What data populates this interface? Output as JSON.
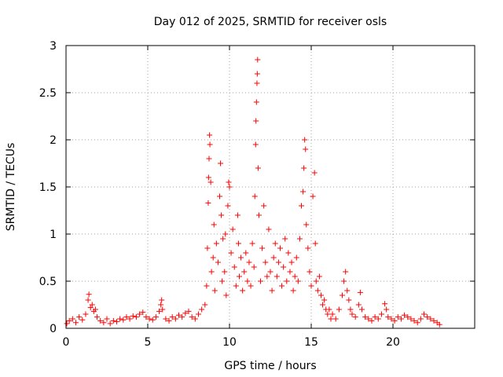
{
  "chart_data": {
    "type": "scatter",
    "title": "Day 012 of 2025, SRMTID for receiver osls",
    "xlabel": "GPS time / hours",
    "ylabel": "SRMTID / TECUs",
    "xlim": [
      0,
      25
    ],
    "ylim": [
      0,
      3
    ],
    "x_ticks": [
      "0",
      "5",
      "10",
      "15",
      "20"
    ],
    "y_ticks": [
      "0",
      "0.5",
      "1",
      "1.5",
      "2",
      "2.5",
      "3"
    ],
    "grid": true,
    "marker": "+",
    "marker_color": "#ff0000",
    "series": [
      {
        "name": "SRMTID",
        "points": [
          [
            0.05,
            0.05
          ],
          [
            0.2,
            0.08
          ],
          [
            0.4,
            0.1
          ],
          [
            0.6,
            0.06
          ],
          [
            0.8,
            0.12
          ],
          [
            1.0,
            0.09
          ],
          [
            1.2,
            0.15
          ],
          [
            1.35,
            0.3
          ],
          [
            1.4,
            0.36
          ],
          [
            1.5,
            0.22
          ],
          [
            1.6,
            0.25
          ],
          [
            1.7,
            0.18
          ],
          [
            1.8,
            0.2
          ],
          [
            1.9,
            0.12
          ],
          [
            2.1,
            0.08
          ],
          [
            2.3,
            0.06
          ],
          [
            2.5,
            0.1
          ],
          [
            2.7,
            0.05
          ],
          [
            2.9,
            0.08
          ],
          [
            3.1,
            0.07
          ],
          [
            3.3,
            0.1
          ],
          [
            3.5,
            0.09
          ],
          [
            3.7,
            0.12
          ],
          [
            3.9,
            0.1
          ],
          [
            4.1,
            0.13
          ],
          [
            4.3,
            0.12
          ],
          [
            4.5,
            0.15
          ],
          [
            4.7,
            0.17
          ],
          [
            4.9,
            0.12
          ],
          [
            5.1,
            0.1
          ],
          [
            5.3,
            0.09
          ],
          [
            5.5,
            0.12
          ],
          [
            5.7,
            0.18
          ],
          [
            5.8,
            0.25
          ],
          [
            5.85,
            0.3
          ],
          [
            5.9,
            0.2
          ],
          [
            6.1,
            0.1
          ],
          [
            6.3,
            0.08
          ],
          [
            6.5,
            0.12
          ],
          [
            6.7,
            0.1
          ],
          [
            6.9,
            0.14
          ],
          [
            7.1,
            0.12
          ],
          [
            7.3,
            0.16
          ],
          [
            7.5,
            0.18
          ],
          [
            7.7,
            0.12
          ],
          [
            7.9,
            0.1
          ],
          [
            8.1,
            0.15
          ],
          [
            8.3,
            0.2
          ],
          [
            8.5,
            0.25
          ],
          [
            8.6,
            0.45
          ],
          [
            8.65,
            0.85
          ],
          [
            8.7,
            1.33
          ],
          [
            8.72,
            1.6
          ],
          [
            8.75,
            1.8
          ],
          [
            8.78,
            2.05
          ],
          [
            8.8,
            1.95
          ],
          [
            8.85,
            1.55
          ],
          [
            8.9,
            0.6
          ],
          [
            9.0,
            0.75
          ],
          [
            9.05,
            1.1
          ],
          [
            9.1,
            0.4
          ],
          [
            9.2,
            0.9
          ],
          [
            9.3,
            0.7
          ],
          [
            9.4,
            1.4
          ],
          [
            9.45,
            1.75
          ],
          [
            9.5,
            1.2
          ],
          [
            9.55,
            0.5
          ],
          [
            9.6,
            0.95
          ],
          [
            9.7,
            0.6
          ],
          [
            9.75,
            1.0
          ],
          [
            9.8,
            0.35
          ],
          [
            9.9,
            1.3
          ],
          [
            9.95,
            1.55
          ],
          [
            10.0,
            1.5
          ],
          [
            10.1,
            0.8
          ],
          [
            10.2,
            1.05
          ],
          [
            10.3,
            0.65
          ],
          [
            10.4,
            0.45
          ],
          [
            10.5,
            1.2
          ],
          [
            10.55,
            0.9
          ],
          [
            10.6,
            0.55
          ],
          [
            10.7,
            0.75
          ],
          [
            10.8,
            0.4
          ],
          [
            10.9,
            0.6
          ],
          [
            11.0,
            0.8
          ],
          [
            11.1,
            0.5
          ],
          [
            11.2,
            0.7
          ],
          [
            11.3,
            0.45
          ],
          [
            11.4,
            0.9
          ],
          [
            11.5,
            0.65
          ],
          [
            11.55,
            1.4
          ],
          [
            11.6,
            1.95
          ],
          [
            11.62,
            2.2
          ],
          [
            11.65,
            2.4
          ],
          [
            11.68,
            2.6
          ],
          [
            11.7,
            2.7
          ],
          [
            11.72,
            2.85
          ],
          [
            11.75,
            1.7
          ],
          [
            11.8,
            1.2
          ],
          [
            11.9,
            0.5
          ],
          [
            12.0,
            0.85
          ],
          [
            12.1,
            1.3
          ],
          [
            12.2,
            0.7
          ],
          [
            12.3,
            0.55
          ],
          [
            12.4,
            1.05
          ],
          [
            12.5,
            0.6
          ],
          [
            12.6,
            0.4
          ],
          [
            12.7,
            0.75
          ],
          [
            12.8,
            0.9
          ],
          [
            12.9,
            0.55
          ],
          [
            13.0,
            0.7
          ],
          [
            13.1,
            0.85
          ],
          [
            13.2,
            0.45
          ],
          [
            13.3,
            0.65
          ],
          [
            13.4,
            0.95
          ],
          [
            13.5,
            0.5
          ],
          [
            13.6,
            0.8
          ],
          [
            13.7,
            0.6
          ],
          [
            13.8,
            0.7
          ],
          [
            13.9,
            0.4
          ],
          [
            14.0,
            0.55
          ],
          [
            14.1,
            0.75
          ],
          [
            14.2,
            0.5
          ],
          [
            14.3,
            0.95
          ],
          [
            14.4,
            1.3
          ],
          [
            14.5,
            1.45
          ],
          [
            14.55,
            1.7
          ],
          [
            14.6,
            2.0
          ],
          [
            14.65,
            1.9
          ],
          [
            14.7,
            1.1
          ],
          [
            14.8,
            0.85
          ],
          [
            14.9,
            0.6
          ],
          [
            15.0,
            0.45
          ],
          [
            15.1,
            1.4
          ],
          [
            15.2,
            1.65
          ],
          [
            15.25,
            0.9
          ],
          [
            15.3,
            0.5
          ],
          [
            15.4,
            0.4
          ],
          [
            15.5,
            0.55
          ],
          [
            15.6,
            0.35
          ],
          [
            15.7,
            0.25
          ],
          [
            15.8,
            0.3
          ],
          [
            15.9,
            0.2
          ],
          [
            16.0,
            0.15
          ],
          [
            16.1,
            0.2
          ],
          [
            16.2,
            0.1
          ],
          [
            16.3,
            0.15
          ],
          [
            16.5,
            0.1
          ],
          [
            16.7,
            0.2
          ],
          [
            16.9,
            0.35
          ],
          [
            17.0,
            0.5
          ],
          [
            17.1,
            0.6
          ],
          [
            17.2,
            0.4
          ],
          [
            17.3,
            0.3
          ],
          [
            17.4,
            0.2
          ],
          [
            17.5,
            0.15
          ],
          [
            17.7,
            0.12
          ],
          [
            17.9,
            0.25
          ],
          [
            18.0,
            0.38
          ],
          [
            18.1,
            0.2
          ],
          [
            18.3,
            0.12
          ],
          [
            18.5,
            0.1
          ],
          [
            18.7,
            0.08
          ],
          [
            18.9,
            0.12
          ],
          [
            19.1,
            0.1
          ],
          [
            19.3,
            0.15
          ],
          [
            19.5,
            0.26
          ],
          [
            19.6,
            0.2
          ],
          [
            19.7,
            0.12
          ],
          [
            19.9,
            0.1
          ],
          [
            20.1,
            0.08
          ],
          [
            20.3,
            0.12
          ],
          [
            20.5,
            0.1
          ],
          [
            20.7,
            0.14
          ],
          [
            20.9,
            0.12
          ],
          [
            21.1,
            0.1
          ],
          [
            21.3,
            0.08
          ],
          [
            21.5,
            0.06
          ],
          [
            21.7,
            0.1
          ],
          [
            21.9,
            0.15
          ],
          [
            22.1,
            0.12
          ],
          [
            22.3,
            0.1
          ],
          [
            22.5,
            0.08
          ],
          [
            22.7,
            0.06
          ],
          [
            22.85,
            0.04
          ]
        ]
      }
    ]
  }
}
